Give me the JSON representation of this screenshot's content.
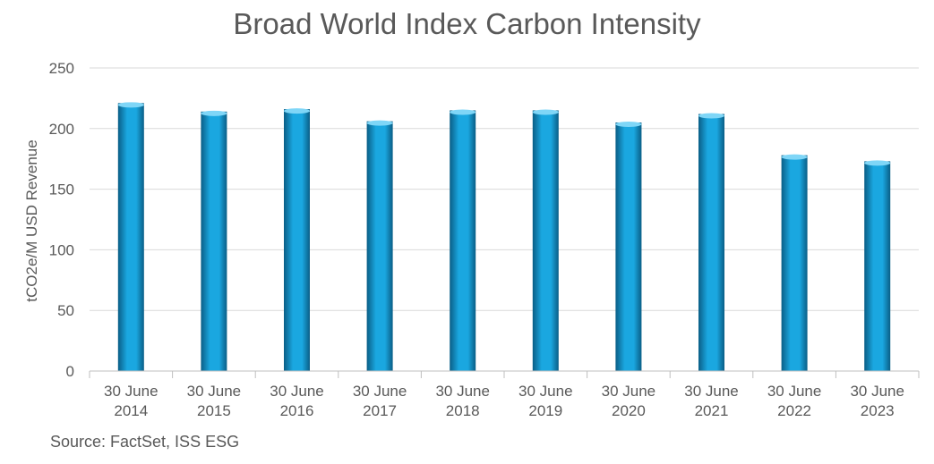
{
  "chart_data": {
    "type": "bar",
    "title": "Broad World Index Carbon Intensity",
    "xlabel": "",
    "ylabel": "tCO2e/M USD Revenue",
    "categories": [
      [
        "30 June",
        "2014"
      ],
      [
        "30 June",
        "2015"
      ],
      [
        "30 June",
        "2016"
      ],
      [
        "30 June",
        "2017"
      ],
      [
        "30 June",
        "2018"
      ],
      [
        "30 June",
        "2019"
      ],
      [
        "30 June",
        "2020"
      ],
      [
        "30 June",
        "2021"
      ],
      [
        "30 June",
        "2022"
      ],
      [
        "30 June",
        "2023"
      ]
    ],
    "values": [
      221,
      214,
      216,
      206,
      215,
      215,
      205,
      212,
      178,
      173
    ],
    "ylim": [
      0,
      250
    ],
    "yticks": [
      0,
      50,
      100,
      150,
      200,
      250
    ],
    "grid": true,
    "legend": "none",
    "bar_color": "#1aa7e0",
    "bar_color_dark": "#0a5e86"
  },
  "source": "Source: FactSet, ISS ESG"
}
